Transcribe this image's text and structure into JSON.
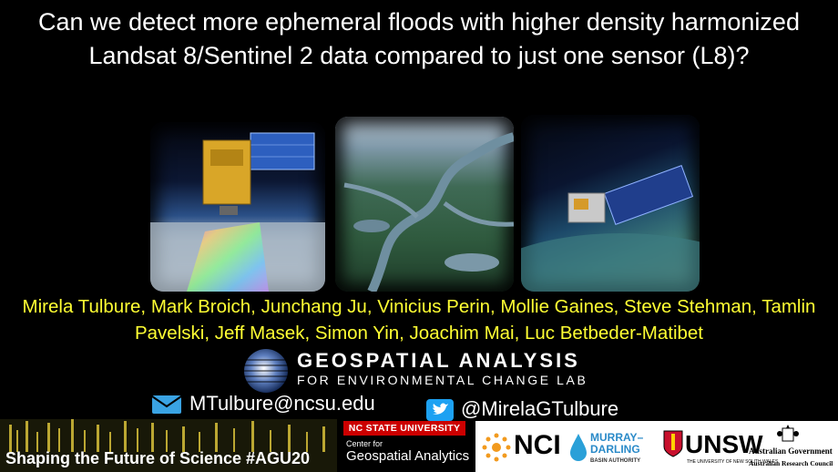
{
  "title": "Can we detect more ephemeral floods with higher density harmonized Landsat 8/Sentinel 2 data compared to just one sensor (L8)?",
  "authors": "Mirela Tulbure, Mark Broich, Junchang Ju, Vinicius Perin, Mollie Gaines, Steve Stehman, Tamlin Pavelski, Jeff Masek, Simon Yin, Joachim Mai, Luc Betbeder-Matibet",
  "lab_logo": {
    "line1": "GEOSPATIAL ANALYSIS",
    "line2": "FOR ENVIRONMENTAL CHANGE LAB"
  },
  "contact": {
    "email": "MTulbure@ncsu.edu",
    "twitter": "@MirelaGTulbure"
  },
  "footer": {
    "agu_text": "Shaping the Future of Science #AGU20",
    "ncsu": "NC STATE UNIVERSITY",
    "center_small": "Center for",
    "center_big": "Geospatial Analytics",
    "nci": "NCI",
    "mdba_1": "MURRAY–",
    "mdba_2": "DARLING",
    "mdba_3": "BASIN AUTHORITY",
    "unsw": "UNSW",
    "unsw_sub": "THE UNIVERSITY OF NEW SOUTH WALES",
    "arc_1": "Australian Government",
    "arc_2": "Australian Research Council"
  },
  "colors": {
    "background": "#000000",
    "authors": "#ffff33",
    "ncsu_red": "#cc0000",
    "twitter_blue": "#1da1f2",
    "email_blue": "#3aa3e3"
  },
  "icons": [
    "satellite-image",
    "floodplain-image",
    "satellite-earth-image",
    "email-icon",
    "twitter-icon"
  ]
}
